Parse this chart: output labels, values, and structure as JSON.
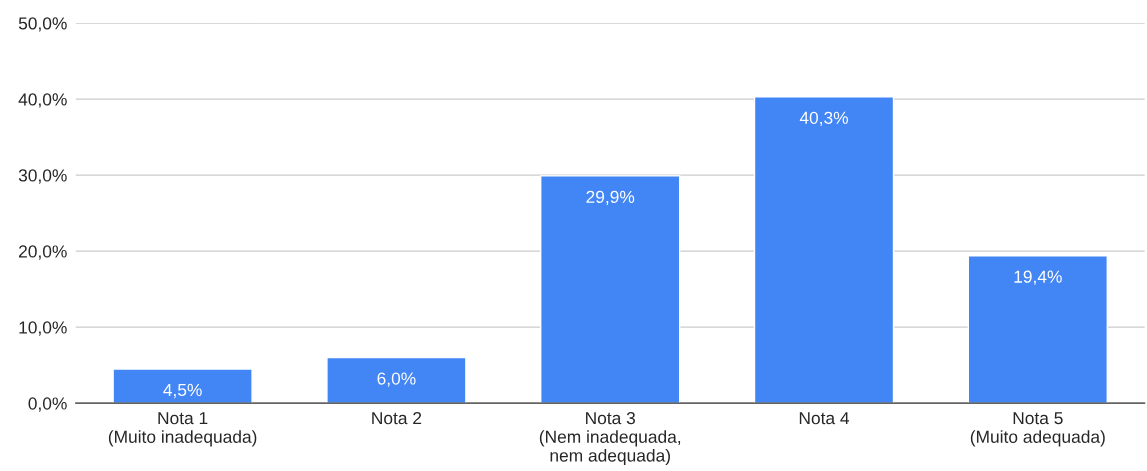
{
  "chart_data": {
    "type": "bar",
    "categories": [
      "Nota 1\n(Muito inadequada)",
      "Nota 2",
      "Nota 3\n(Nem inadequada,\nnem adequada)",
      "Nota 4",
      "Nota 5\n(Muito adequada)"
    ],
    "values": [
      4.5,
      6.0,
      29.9,
      40.3,
      19.4
    ],
    "value_labels": [
      "4,5%",
      "6,0%",
      "29,9%",
      "40,3%",
      "19,4%"
    ],
    "color": "#4285f4",
    "ylim": [
      0,
      50
    ],
    "yticks": [
      {
        "value": 0,
        "label": "0,0%"
      },
      {
        "value": 10,
        "label": "10,0%"
      },
      {
        "value": 20,
        "label": "20,0%"
      },
      {
        "value": 30,
        "label": "30,0%"
      },
      {
        "value": 40,
        "label": "40,0%"
      },
      {
        "value": 50,
        "label": "50,0%"
      }
    ],
    "grid": "y"
  }
}
